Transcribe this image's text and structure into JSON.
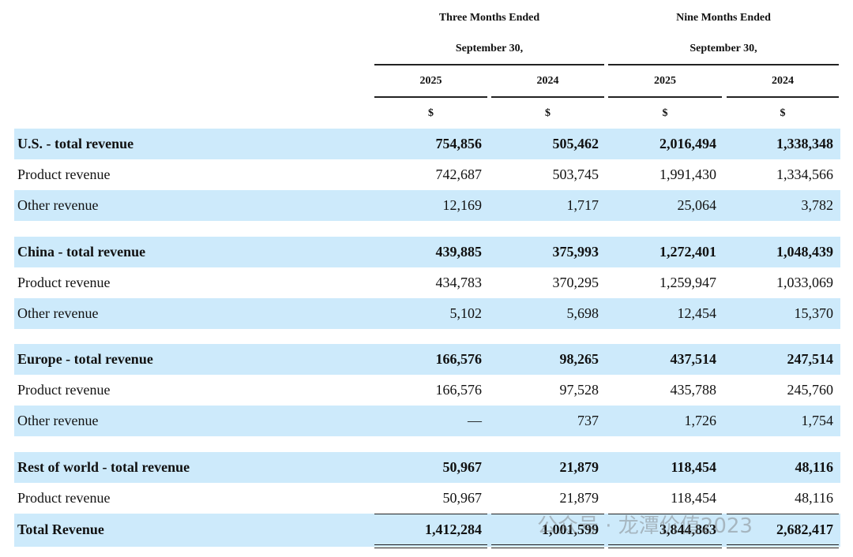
{
  "header": {
    "groups": [
      {
        "title": "Three Months Ended",
        "subtitle": "September 30,"
      },
      {
        "title": "Nine Months Ended",
        "subtitle": "September 30,"
      }
    ],
    "years": [
      "2025",
      "2024",
      "2025",
      "2024"
    ],
    "currency": [
      "$",
      "$",
      "$",
      "$"
    ]
  },
  "sections": [
    {
      "rows": [
        {
          "label": "U.S. - total revenue",
          "values": [
            "754,856",
            "505,462",
            "2,016,494",
            "1,338,348"
          ],
          "bold": true
        },
        {
          "label": "Product revenue",
          "values": [
            "742,687",
            "503,745",
            "1,991,430",
            "1,334,566"
          ],
          "bold": false
        },
        {
          "label": "Other revenue",
          "values": [
            "12,169",
            "1,717",
            "25,064",
            "3,782"
          ],
          "bold": false
        }
      ]
    },
    {
      "rows": [
        {
          "label": "China - total revenue",
          "values": [
            "439,885",
            "375,993",
            "1,272,401",
            "1,048,439"
          ],
          "bold": true
        },
        {
          "label": "Product revenue",
          "values": [
            "434,783",
            "370,295",
            "1,259,947",
            "1,033,069"
          ],
          "bold": false
        },
        {
          "label": "Other revenue",
          "values": [
            "5,102",
            "5,698",
            "12,454",
            "15,370"
          ],
          "bold": false
        }
      ]
    },
    {
      "rows": [
        {
          "label": "Europe - total revenue",
          "values": [
            "166,576",
            "98,265",
            "437,514",
            "247,514"
          ],
          "bold": true
        },
        {
          "label": "Product revenue",
          "values": [
            "166,576",
            "97,528",
            "435,788",
            "245,760"
          ],
          "bold": false
        },
        {
          "label": "Other revenue",
          "values": [
            "—",
            "737",
            "1,726",
            "1,754"
          ],
          "bold": false
        }
      ]
    },
    {
      "rows": [
        {
          "label": "Rest of world - total revenue",
          "values": [
            "50,967",
            "21,879",
            "118,454",
            "48,116"
          ],
          "bold": true
        },
        {
          "label": "Product revenue",
          "values": [
            "50,967",
            "21,879",
            "118,454",
            "48,116"
          ],
          "bold": false
        }
      ]
    }
  ],
  "total": {
    "label": "Total Revenue",
    "values": [
      "1,412,284",
      "1,001,599",
      "3,844,863",
      "2,682,417"
    ],
    "bold": true
  },
  "watermark": "公众号 · 龙潭价值2023"
}
